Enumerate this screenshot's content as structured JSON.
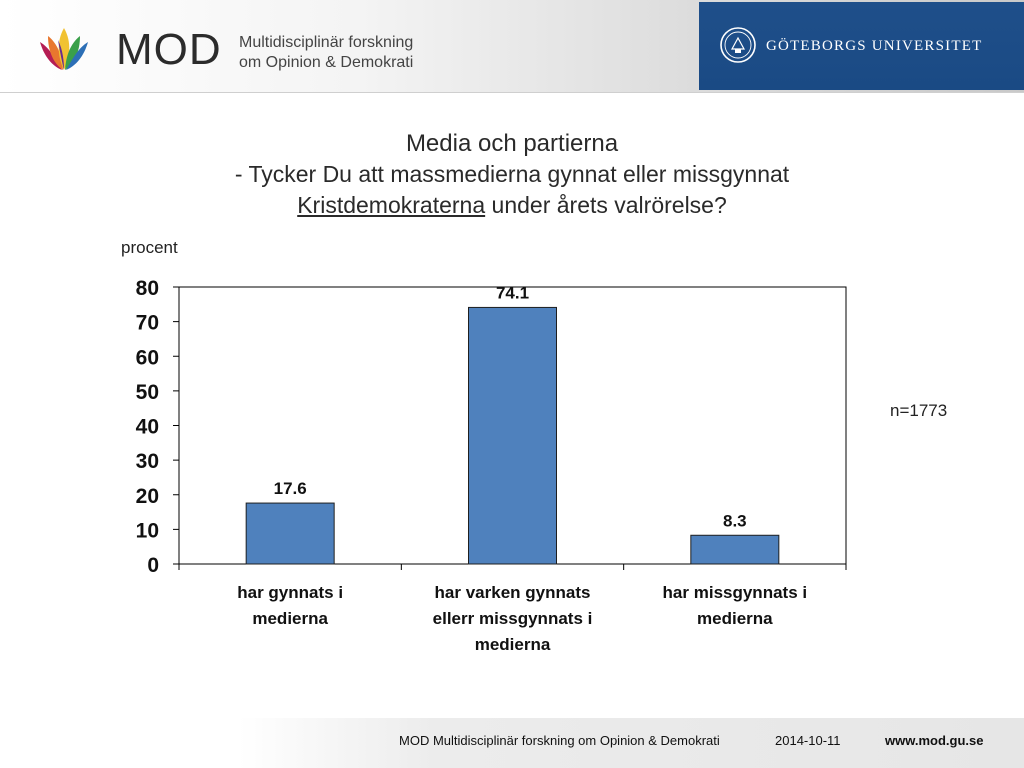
{
  "header": {
    "logo_text": "MOD",
    "logo_sub_line1": "Multidisciplinär forskning",
    "logo_sub_line2": "om Opinion & Demokrati",
    "university": "GÖTEBORGS UNIVERSITET"
  },
  "title": {
    "line1": "Media och partierna",
    "line2": "- Tycker Du att massmedierna gynnat eller missgynnat",
    "line3_underlined": "Kristdemokraterna",
    "line3_rest": " under årets valrörelse?"
  },
  "y_unit": "procent",
  "n_note": "n=1773",
  "chart_data": {
    "type": "bar",
    "categories": [
      [
        "har gynnats i",
        "medierna"
      ],
      [
        "har varken gynnats",
        "ellerr missgynnats i",
        "medierna"
      ],
      [
        "har missgynnats i",
        "medierna"
      ]
    ],
    "values": [
      17.6,
      74.1,
      8.3
    ],
    "data_labels": [
      "17.6",
      "74.1",
      "8.3"
    ],
    "ylim": [
      0,
      80
    ],
    "yticks": [
      0,
      10,
      20,
      30,
      40,
      50,
      60,
      70,
      80
    ],
    "grid": false,
    "bar_color": "#4f81bd",
    "bar_edge_color": "#1f1f1f"
  },
  "footer": {
    "org": "MOD Multidisciplinär forskning om Opinion & Demokrati",
    "date": "2014-10-11",
    "url": "www.mod.gu.se"
  }
}
